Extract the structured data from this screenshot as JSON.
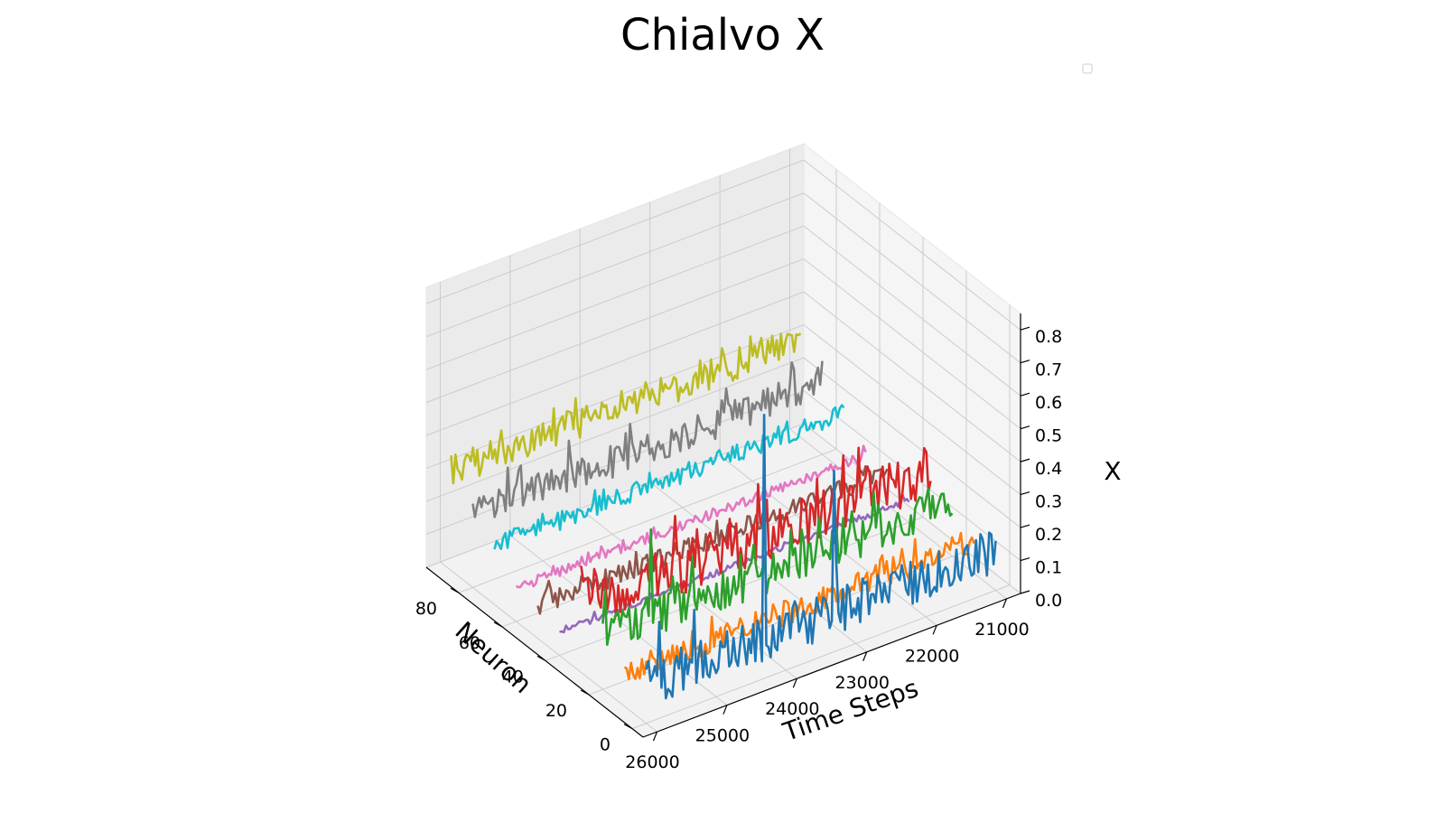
{
  "chart_data": {
    "type": "line",
    "projection": "3d",
    "title": "Chialvo X",
    "xlabel": "Time Steps",
    "ylabel": "Neuron",
    "zlabel": "X",
    "xlim": [
      20800,
      26200
    ],
    "ylim": [
      -5,
      95
    ],
    "zlim": [
      0,
      0.85
    ],
    "x_ticks": [
      "21000",
      "22000",
      "23000",
      "24000",
      "25000",
      "26000"
    ],
    "y_ticks": [
      "0",
      "20",
      "40",
      "60",
      "80"
    ],
    "z_ticks": [
      "0.0",
      "0.1",
      "0.2",
      "0.3",
      "0.4",
      "0.5",
      "0.6",
      "0.7",
      "0.8"
    ],
    "grid": true,
    "legend": "upper right (empty)",
    "x_range": [
      21000,
      26000
    ],
    "series": [
      {
        "neuron": 0,
        "color": "#1f77b4",
        "baseline": 0.12,
        "noise": 0.07,
        "spikes": [
          [
            23300,
            0.55
          ],
          [
            24300,
            0.8
          ]
        ]
      },
      {
        "neuron": 10,
        "color": "#ff7f0e",
        "baseline": 0.1,
        "noise": 0.04,
        "spikes": []
      },
      {
        "neuron": 20,
        "color": "#2ca02c",
        "baseline": 0.16,
        "noise": 0.06,
        "spikes": [
          [
            25300,
            0.43
          ]
        ]
      },
      {
        "neuron": 30,
        "color": "#d62728",
        "baseline": 0.2,
        "noise": 0.08,
        "spikes": []
      },
      {
        "neuron": 40,
        "color": "#9467bd",
        "baseline": 0.07,
        "noise": 0.01,
        "spikes": []
      },
      {
        "neuron": 50,
        "color": "#8c564b",
        "baseline": 0.1,
        "noise": 0.03,
        "spikes": []
      },
      {
        "neuron": 60,
        "color": "#e377c2",
        "baseline": 0.1,
        "noise": 0.015,
        "spikes": []
      },
      {
        "neuron": 70,
        "color": "#17becf",
        "baseline": 0.18,
        "noise": 0.03,
        "spikes": []
      },
      {
        "neuron": 80,
        "color": "#7f7f7f",
        "baseline": 0.22,
        "noise": 0.05,
        "spikes": []
      },
      {
        "neuron": 90,
        "color": "#bcbd22",
        "baseline": 0.3,
        "noise": 0.05,
        "spikes": []
      }
    ]
  }
}
